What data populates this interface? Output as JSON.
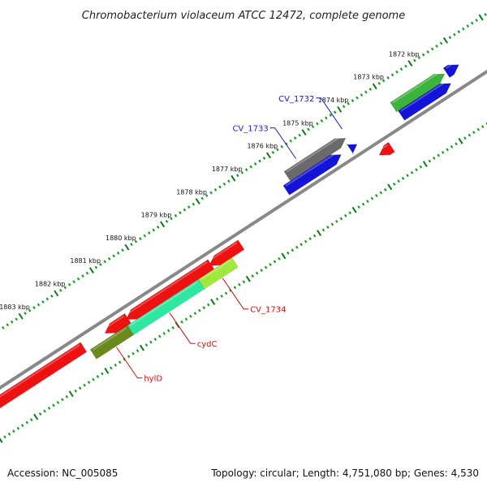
{
  "title": "Chromobacterium violaceum ATCC 12472, complete genome",
  "footer": {
    "accession_label": "Accession:",
    "accession": "NC_005085",
    "topology_label": "Topology:",
    "topology": "circular",
    "length_label": "Length:",
    "length": "4,751,080 bp",
    "genes_label": "Genes:",
    "genes": "4,530"
  },
  "colors": {
    "backbone": "#888888",
    "tick_major": "#0b7a16",
    "tick_minor": "#1e9a2a",
    "label_blue": "#1a1acc",
    "label_red": "#cc1111"
  },
  "scale": {
    "unit": "kbp",
    "ticks": [
      {
        "kbp": 1872,
        "label": "1872 kbp"
      },
      {
        "kbp": 1873,
        "label": "1873 kbp"
      },
      {
        "kbp": 1874,
        "label": "1874 kbp"
      },
      {
        "kbp": 1875,
        "label": "1875 kbp"
      },
      {
        "kbp": 1876,
        "label": "1876 kbp"
      },
      {
        "kbp": 1877,
        "label": "1877 kbp"
      },
      {
        "kbp": 1878,
        "label": "1878 kbp"
      },
      {
        "kbp": 1879,
        "label": "1879 kbp"
      },
      {
        "kbp": 1880,
        "label": "1880 kbp"
      },
      {
        "kbp": 1881,
        "label": "1881 kbp"
      },
      {
        "kbp": 1882,
        "label": "1882 kbp"
      },
      {
        "kbp": 1883,
        "label": "1883 kbp"
      }
    ]
  },
  "features": [
    {
      "name": "green-gene",
      "start": 1871.45,
      "end": 1872.9,
      "lane": "outer",
      "strand": "forward",
      "color": "#3cb43c"
    },
    {
      "name": "blue-gene-top",
      "start": 1871.45,
      "end": 1872.85,
      "lane": "outer2",
      "strand": "forward",
      "color": "#1414d8"
    },
    {
      "name": "blue-gene-cap",
      "start": 1871.05,
      "end": 1871.4,
      "lane": "outer",
      "strand": "forward",
      "color": "#1414d8"
    },
    {
      "name": "CV_1732",
      "start": 1874.1,
      "end": 1874.3,
      "lane": "outer2",
      "strand": "forward",
      "color": "#1414d8"
    },
    {
      "name": "gray-gene",
      "start": 1874.25,
      "end": 1875.9,
      "lane": "outer",
      "strand": "forward",
      "color": "#6a6a6a"
    },
    {
      "name": "CV_1733",
      "start": 1874.55,
      "end": 1876.1,
      "lane": "outer2",
      "strand": "forward",
      "color": "#1414d8"
    },
    {
      "name": "red-small",
      "start": 1873.45,
      "end": 1873.8,
      "lane": "inner",
      "strand": "reverse",
      "color": "#ee1111"
    },
    {
      "name": "red-gene-upper",
      "start": 1877.7,
      "end": 1878.6,
      "lane": "inner",
      "strand": "reverse",
      "color": "#ee1111"
    },
    {
      "name": "red-gene-mid",
      "start": 1878.55,
      "end": 1880.95,
      "lane": "inner",
      "strand": "reverse",
      "color": "#ee1111"
    },
    {
      "name": "red-gene-lower",
      "start": 1880.9,
      "end": 1881.55,
      "lane": "inner",
      "strand": "reverse",
      "color": "#ee1111"
    },
    {
      "name": "hylD-big",
      "start": 1882.15,
      "end": 1886.5,
      "lane": "inner",
      "strand": "reverse",
      "color": "#ee1111"
    },
    {
      "name": "CV_1734",
      "start": 1878.05,
      "end": 1879.0,
      "lane": "inner2",
      "strand": "none",
      "color": "#9fe83c"
    },
    {
      "name": "cydC",
      "start": 1879.0,
      "end": 1881.0,
      "lane": "inner2",
      "strand": "none",
      "color": "#2ee8a0"
    },
    {
      "name": "hylD",
      "start": 1881.0,
      "end": 1882.05,
      "lane": "inner2",
      "strand": "none",
      "color": "#6b8a1e"
    }
  ],
  "labels": [
    {
      "text": "CV_1732",
      "color_key": "label_blue",
      "feature_kbp": 1874.2
    },
    {
      "text": "CV_1733",
      "color_key": "label_blue",
      "feature_kbp": 1875.5
    },
    {
      "text": "CV_1734",
      "color_key": "label_red",
      "feature_kbp": 1878.5
    },
    {
      "text": "cydC",
      "color_key": "label_red",
      "feature_kbp": 1880.0
    },
    {
      "text": "hylD",
      "color_key": "label_red",
      "feature_kbp": 1881.5
    }
  ]
}
